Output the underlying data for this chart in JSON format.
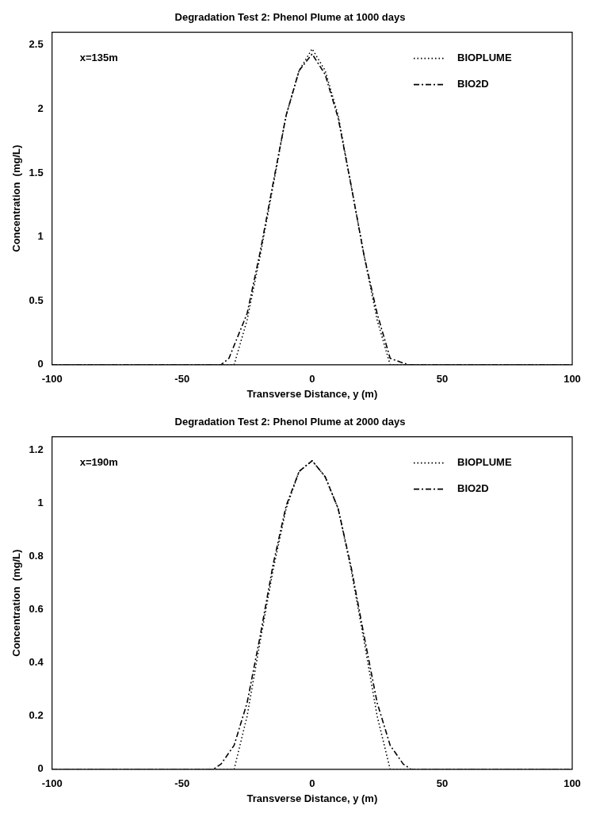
{
  "chart_data": [
    {
      "type": "line",
      "title": "Degradation Test 2: Phenol Plume at 1000 days",
      "xlabel": "Transverse Distance, y (m)",
      "ylabel": "Concentration  (mg/L)",
      "annotations": [
        "x=135m"
      ],
      "xlim": [
        -100,
        100
      ],
      "xticks": [
        -100,
        -50,
        0,
        50,
        100
      ],
      "ylim": [
        0,
        2.6
      ],
      "yticks": [
        0,
        0.5,
        1,
        1.5,
        2,
        2.5
      ],
      "grid": false,
      "legend": "top right",
      "marker": "none",
      "series": [
        {
          "name": "BIOPLUME",
          "color": "#000000",
          "line_style": "dotted",
          "x": [
            -100,
            -35,
            -30,
            -25,
            -20,
            -15,
            -10,
            -5,
            0,
            5,
            10,
            15,
            20,
            25,
            30,
            35,
            100
          ],
          "values": [
            0,
            0,
            0,
            0.35,
            0.85,
            1.4,
            1.95,
            2.3,
            2.47,
            2.3,
            1.95,
            1.4,
            0.85,
            0.35,
            0,
            0,
            0
          ]
        },
        {
          "name": "BIO2D",
          "color": "#000000",
          "line_style": "dashed",
          "x": [
            -100,
            -35,
            -32,
            -25,
            -20,
            -15,
            -10,
            -5,
            0,
            5,
            10,
            15,
            20,
            25,
            30,
            34,
            37,
            100
          ],
          "values": [
            0,
            0,
            0.05,
            0.4,
            0.88,
            1.42,
            1.95,
            2.3,
            2.43,
            2.27,
            1.93,
            1.4,
            0.85,
            0.4,
            0.05,
            0.02,
            0,
            0
          ]
        }
      ]
    },
    {
      "type": "line",
      "title": "Degradation Test 2: Phenol Plume at 2000 days",
      "xlabel": "Transverse Distance, y (m)",
      "ylabel": "Concentration  (mg/L)",
      "annotations": [
        "x=190m"
      ],
      "xlim": [
        -100,
        100
      ],
      "xticks": [
        -100,
        -50,
        0,
        50,
        100
      ],
      "ylim": [
        0,
        1.25
      ],
      "yticks": [
        0,
        0.2,
        0.4,
        0.6,
        0.8,
        1,
        1.2
      ],
      "grid": false,
      "legend": "top right",
      "marker": "none",
      "series": [
        {
          "name": "BIOPLUME",
          "color": "#000000",
          "line_style": "dotted",
          "x": [
            -100,
            -30,
            -25,
            -20,
            -15,
            -10,
            -5,
            0,
            5,
            10,
            15,
            20,
            25,
            30,
            100
          ],
          "values": [
            0,
            0,
            0.2,
            0.48,
            0.75,
            0.98,
            1.12,
            1.16,
            1.1,
            0.98,
            0.75,
            0.48,
            0.2,
            0,
            0
          ]
        },
        {
          "name": "BIO2D",
          "color": "#000000",
          "line_style": "dashed",
          "x": [
            -100,
            -38,
            -35,
            -30,
            -25,
            -20,
            -15,
            -10,
            -5,
            0,
            5,
            10,
            15,
            20,
            25,
            30,
            35,
            38,
            100
          ],
          "values": [
            0,
            0,
            0.02,
            0.09,
            0.25,
            0.5,
            0.77,
            0.99,
            1.12,
            1.16,
            1.1,
            0.98,
            0.76,
            0.5,
            0.25,
            0.09,
            0.02,
            0,
            0
          ]
        }
      ]
    }
  ]
}
